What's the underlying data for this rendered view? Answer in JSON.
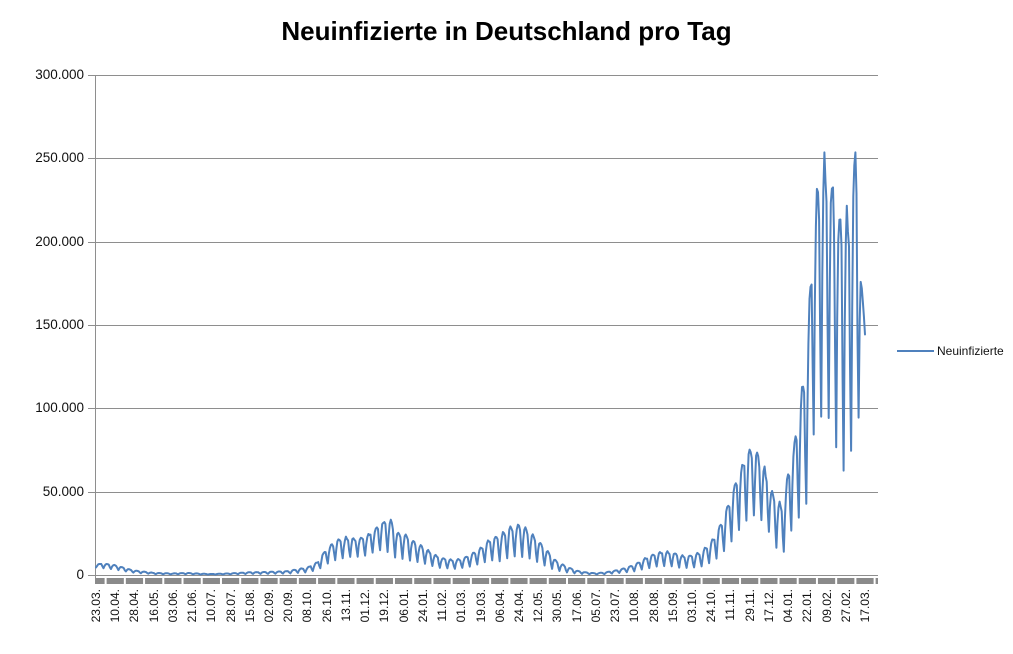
{
  "chart": {
    "title": "Neuinfizierte in Deutschland pro Tag"
  },
  "chart_data": {
    "type": "line",
    "title": "Neuinfizierte in Deutschland pro Tag",
    "series_name": "Neuinfizierte",
    "xlabel": "",
    "ylabel": "",
    "ylim": [
      0,
      300000
    ],
    "grid": "horizontal-major",
    "legend_position": "right-middle",
    "y_tick_labels": [
      "0",
      "50.000",
      "100.000",
      "150.000",
      "200.000",
      "250.000",
      "300.000"
    ],
    "x_tick_labels": [
      "23.03.",
      "10.04.",
      "28.04.",
      "16.05.",
      "03.06.",
      "21.06.",
      "10.07.",
      "28.07.",
      "15.08.",
      "02.09.",
      "20.09.",
      "08.10.",
      "26.10.",
      "13.11.",
      "01.12.",
      "19.12.",
      "06.01.",
      "24.01.",
      "11.02.",
      "01.03.",
      "19.03.",
      "06.04.",
      "24.04.",
      "12.05.",
      "30.05.",
      "17.06.",
      "05.07.",
      "23.07.",
      "10.08.",
      "28.08.",
      "15.09.",
      "03.10.",
      "24.10.",
      "11.11.",
      "29.11.",
      "17.12.",
      "04.01.",
      "22.01.",
      "09.02.",
      "27.02.",
      "17.03."
    ],
    "points_per_label_interval": 18,
    "weekly_pattern": [
      0,
      0.55,
      0.9,
      1,
      0.95,
      0.85,
      0.35
    ],
    "envelope_anchors": [
      [
        0,
        6200,
        4500
      ],
      [
        0.3,
        6900,
        4200
      ],
      [
        1,
        6000,
        3400
      ],
      [
        1.5,
        4200,
        2200
      ],
      [
        2,
        2700,
        1300
      ],
      [
        3,
        1300,
        550
      ],
      [
        4,
        950,
        350
      ],
      [
        4.7,
        1300,
        480
      ],
      [
        5.5,
        750,
        280
      ],
      [
        6,
        600,
        250
      ],
      [
        7,
        1000,
        400
      ],
      [
        8,
        1700,
        650
      ],
      [
        9,
        1900,
        700
      ],
      [
        10,
        2400,
        900
      ],
      [
        11,
        4600,
        1700
      ],
      [
        11.5,
        7800,
        2900
      ],
      [
        12,
        16000,
        6500
      ],
      [
        12.5,
        21000,
        9200
      ],
      [
        13,
        22500,
        10500
      ],
      [
        13.5,
        22000,
        11000
      ],
      [
        14,
        23000,
        11800
      ],
      [
        14.5,
        28000,
        13500
      ],
      [
        15,
        32500,
        15500
      ],
      [
        15.35,
        33000,
        11500
      ],
      [
        15.7,
        25500,
        10000
      ],
      [
        16,
        25000,
        9500
      ],
      [
        16.5,
        20500,
        8200
      ],
      [
        17,
        17000,
        7000
      ],
      [
        17.5,
        13000,
        5300
      ],
      [
        18,
        10200,
        4100
      ],
      [
        18.6,
        9000,
        3700
      ],
      [
        19,
        9800,
        4200
      ],
      [
        19.5,
        12200,
        5100
      ],
      [
        20,
        16500,
        6800
      ],
      [
        20.5,
        21500,
        8800
      ],
      [
        21,
        24000,
        8200
      ],
      [
        21.5,
        28500,
        10800
      ],
      [
        22,
        30200,
        11500
      ],
      [
        22.5,
        27000,
        10000
      ],
      [
        23,
        21000,
        7600
      ],
      [
        23.5,
        14000,
        4600
      ],
      [
        24,
        7800,
        2600
      ],
      [
        24.5,
        5000,
        1600
      ],
      [
        25,
        2600,
        850
      ],
      [
        25.5,
        1600,
        520
      ],
      [
        26,
        1050,
        360
      ],
      [
        26.5,
        1650,
        600
      ],
      [
        27,
        2700,
        1000
      ],
      [
        27.5,
        4100,
        1500
      ],
      [
        28,
        6100,
        2300
      ],
      [
        28.5,
        9600,
        3600
      ],
      [
        29,
        12600,
        4800
      ],
      [
        29.5,
        14200,
        5400
      ],
      [
        30,
        13600,
        5100
      ],
      [
        30.5,
        11600,
        4300
      ],
      [
        31,
        11900,
        4400
      ],
      [
        31.5,
        14000,
        5200
      ],
      [
        32,
        20000,
        7600
      ],
      [
        32.5,
        30500,
        12000
      ],
      [
        33,
        47500,
        19500
      ],
      [
        33.5,
        64500,
        28500
      ],
      [
        34,
        76500,
        35000
      ],
      [
        34.35,
        74000,
        36000
      ],
      [
        34.7,
        66500,
        32000
      ],
      [
        35,
        55500,
        26000
      ],
      [
        35.4,
        44500,
        16500
      ],
      [
        35.75,
        42000,
        13000
      ],
      [
        36,
        61500,
        23500
      ],
      [
        36.5,
        91000,
        33000
      ],
      [
        37,
        134000,
        45000
      ],
      [
        37.25,
        203500,
        79000
      ],
      [
        37.7,
        249000,
        97000
      ],
      [
        38,
        248000,
        95000
      ],
      [
        38.3,
        236500,
        89000
      ],
      [
        38.7,
        216000,
        63000
      ],
      [
        39.1,
        217500,
        65000
      ],
      [
        39.35,
        231000,
        76000
      ],
      [
        39.5,
        263000,
        92000
      ],
      [
        39.8,
        180000,
        100000
      ],
      [
        40,
        148000,
        144000
      ]
    ],
    "colors": {
      "line": "#4F81BD",
      "gridline": "#8E8E8E",
      "axis": "#8E8E8E",
      "tick_bar": "#8A8A8A",
      "text": "#111111"
    }
  }
}
